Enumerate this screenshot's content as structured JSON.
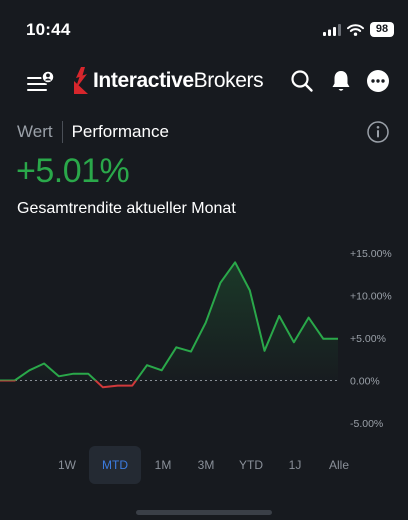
{
  "status": {
    "time": "10:44",
    "battery": "98"
  },
  "header": {
    "brand_bold": "Interactive",
    "brand_regular": "Brokers"
  },
  "tabs": [
    {
      "label": "Wert"
    },
    {
      "label": "Performance"
    }
  ],
  "performance": {
    "value": "+5.01%",
    "subtitle": "Gesamtrendite aktueller Monat"
  },
  "ranges": [
    {
      "label": "1W"
    },
    {
      "label": "MTD"
    },
    {
      "label": "1M"
    },
    {
      "label": "3M"
    },
    {
      "label": "YTD"
    },
    {
      "label": "1J"
    },
    {
      "label": "Alle"
    }
  ],
  "selected_range": "MTD",
  "colors": {
    "positive": "#2aa84a",
    "negative": "#d0393b",
    "accent": "#3c7ce0",
    "background": "#171a1f"
  },
  "chart_data": {
    "type": "line",
    "ylim": [
      -7,
      17
    ],
    "yticks": [
      -5,
      0,
      5,
      10,
      15
    ],
    "ytick_labels": [
      "-5.00%",
      "0.00%",
      "+5.00%",
      "+10.00%",
      "+15.00%"
    ],
    "baseline": 0,
    "values": [
      0,
      0,
      1.2,
      2.0,
      0.5,
      0.8,
      0.8,
      -0.8,
      -0.6,
      -0.6,
      1.8,
      1.2,
      3.9,
      3.4,
      6.8,
      11.5,
      13.9,
      10.6,
      3.5,
      7.6,
      4.5,
      7.4,
      4.9,
      4.9
    ]
  }
}
